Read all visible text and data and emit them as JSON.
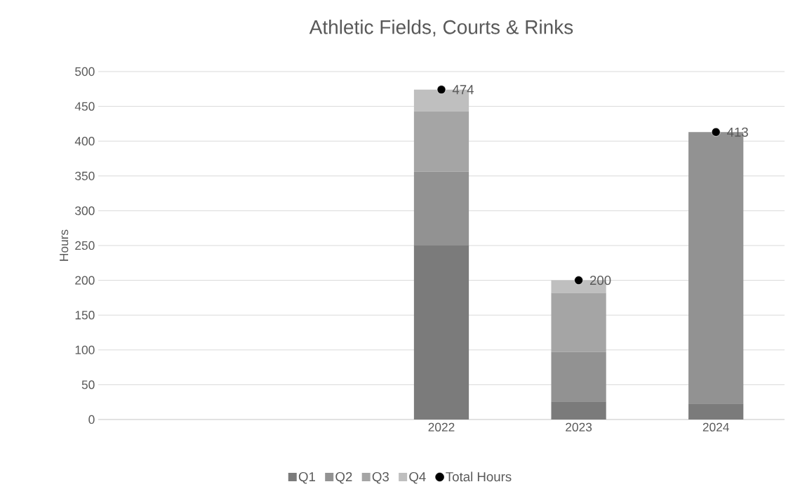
{
  "chart_data": {
    "type": "bar",
    "stacked": true,
    "title": "Athletic Fields, Courts & Rinks",
    "ylabel": "Hours",
    "categories": [
      null,
      null,
      "2022",
      "2023",
      "2024"
    ],
    "series": [
      {
        "name": "Q1",
        "color": "#7b7b7b",
        "values": [
          null,
          null,
          250,
          26,
          23
        ]
      },
      {
        "name": "Q2",
        "color": "#929292",
        "values": [
          null,
          null,
          106,
          71,
          390
        ]
      },
      {
        "name": "Q3",
        "color": "#a5a5a5",
        "values": [
          null,
          null,
          87,
          85,
          null
        ]
      },
      {
        "name": "Q4",
        "color": "#bfbfbf",
        "values": [
          null,
          null,
          31,
          18,
          null
        ]
      },
      {
        "name": "Total Hours",
        "type": "scatter",
        "marker": "circle",
        "color": "#000000",
        "data_labels": true,
        "values": [
          null,
          null,
          474,
          200,
          413
        ]
      }
    ],
    "ylim": [
      0,
      500
    ],
    "yticks": [
      0,
      50,
      100,
      150,
      200,
      250,
      300,
      350,
      400,
      450,
      500
    ],
    "grid": "y",
    "legend": "bottom"
  }
}
